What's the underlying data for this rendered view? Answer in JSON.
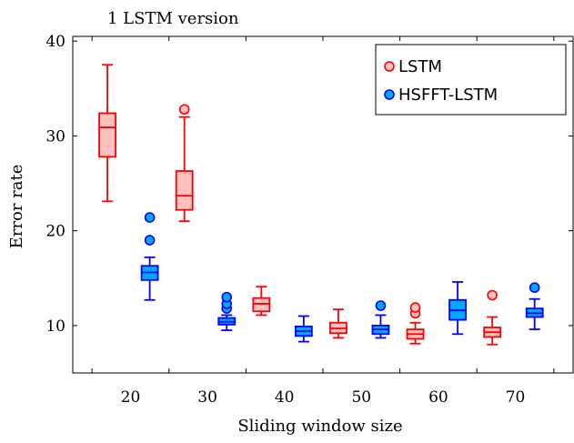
{
  "chart_data": {
    "type": "box",
    "title": "1 LSTM version",
    "xlabel": "Sliding window size",
    "ylabel": "Error rate",
    "categories": [
      "20",
      "30",
      "40",
      "50",
      "60",
      "70"
    ],
    "xlim": [
      12.5,
      77.5
    ],
    "ylim": [
      5,
      40.5
    ],
    "yticks": [
      10,
      20,
      30,
      40
    ],
    "legend_position": "top-right",
    "series": [
      {
        "name": "LSTM",
        "color": "#ff0000",
        "fill": "#ffc0c0",
        "boxes": [
          {
            "x": 20,
            "whisker_low": 23.1,
            "q1": 27.8,
            "median": 30.9,
            "q3": 32.4,
            "whisker_high": 37.5,
            "outliers": []
          },
          {
            "x": 30,
            "whisker_low": 21.0,
            "q1": 22.2,
            "median": 23.7,
            "q3": 26.3,
            "whisker_high": 32.0,
            "outliers": [
              32.8
            ]
          },
          {
            "x": 40,
            "whisker_low": 11.1,
            "q1": 11.5,
            "median": 12.3,
            "q3": 12.9,
            "whisker_high": 14.1,
            "outliers": []
          },
          {
            "x": 50,
            "whisker_low": 8.7,
            "q1": 9.2,
            "median": 9.7,
            "q3": 10.3,
            "whisker_high": 11.7,
            "outliers": []
          },
          {
            "x": 60,
            "whisker_low": 8.1,
            "q1": 8.6,
            "median": 9.1,
            "q3": 9.6,
            "whisker_high": 10.3,
            "outliers": [
              11.3,
              11.9
            ]
          },
          {
            "x": 70,
            "whisker_low": 8.0,
            "q1": 8.8,
            "median": 9.3,
            "q3": 9.8,
            "whisker_high": 10.9,
            "outliers": [
              13.2
            ]
          }
        ]
      },
      {
        "name": "HSFFT-LSTM",
        "color": "#0000ff",
        "fill": "#00aaff",
        "boxes": [
          {
            "x": 20,
            "whisker_low": 12.7,
            "q1": 14.8,
            "median": 15.6,
            "q3": 16.3,
            "whisker_high": 17.2,
            "outliers": [
              19.0,
              21.4
            ]
          },
          {
            "x": 30,
            "whisker_low": 9.5,
            "q1": 10.1,
            "median": 10.4,
            "q3": 10.8,
            "whisker_high": 11.1,
            "outliers": [
              11.8,
              12.3,
              13.0
            ]
          },
          {
            "x": 40,
            "whisker_low": 8.3,
            "q1": 8.9,
            "median": 9.4,
            "q3": 9.9,
            "whisker_high": 11.0,
            "outliers": []
          },
          {
            "x": 50,
            "whisker_low": 8.7,
            "q1": 9.1,
            "median": 9.6,
            "q3": 10.0,
            "whisker_high": 11.1,
            "outliers": [
              12.1
            ]
          },
          {
            "x": 60,
            "whisker_low": 9.1,
            "q1": 10.6,
            "median": 11.6,
            "q3": 12.7,
            "whisker_high": 14.6,
            "outliers": []
          },
          {
            "x": 70,
            "whisker_low": 9.6,
            "q1": 10.9,
            "median": 11.3,
            "q3": 11.8,
            "whisker_high": 12.8,
            "outliers": [
              14.0
            ]
          }
        ]
      }
    ]
  }
}
